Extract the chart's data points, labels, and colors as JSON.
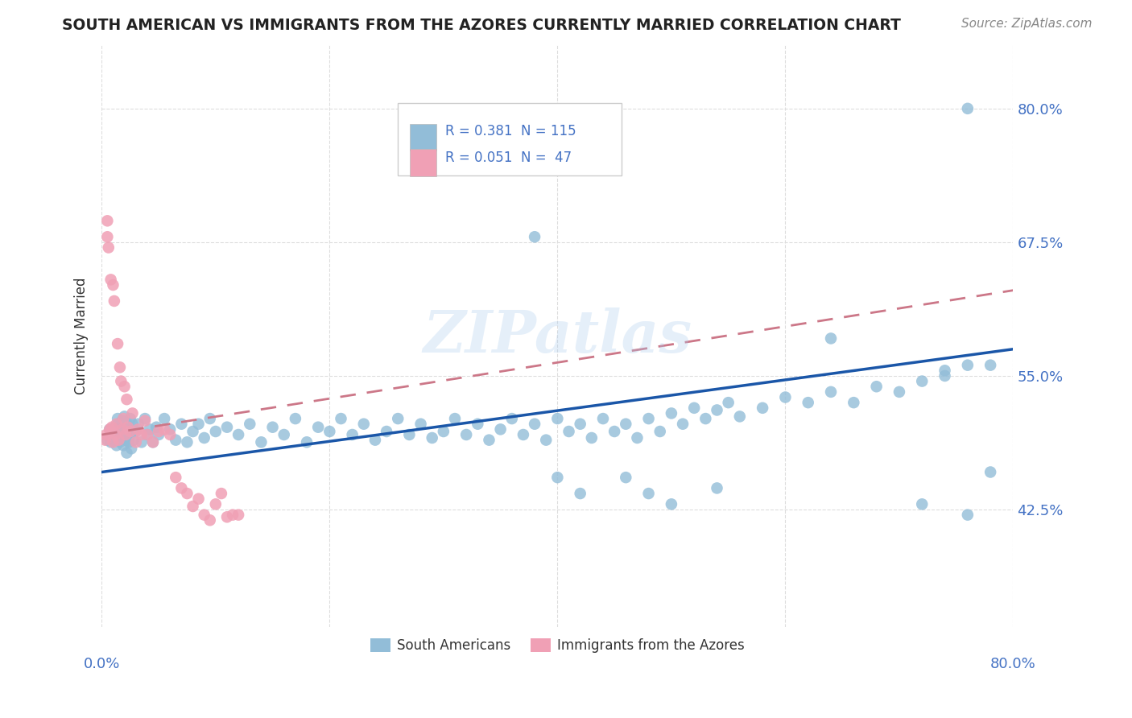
{
  "title": "SOUTH AMERICAN VS IMMIGRANTS FROM THE AZORES CURRENTLY MARRIED CORRELATION CHART",
  "source": "Source: ZipAtlas.com",
  "ylabel": "Currently Married",
  "ytick_values": [
    0.8,
    0.675,
    0.55,
    0.425
  ],
  "ytick_labels": [
    "80.0%",
    "67.5%",
    "55.0%",
    "42.5%"
  ],
  "xlim": [
    0.0,
    0.8
  ],
  "ylim": [
    0.315,
    0.86
  ],
  "legend1_r": "R = 0.381",
  "legend1_n": "N = 115",
  "legend2_r": "R = 0.051",
  "legend2_n": "N =  47",
  "blue_color": "#92BDD8",
  "pink_color": "#F0A0B5",
  "blue_line_color": "#1A56A8",
  "pink_line_color": "#CC7788",
  "watermark": "ZIPatlas",
  "axis_color": "#4472C4",
  "grid_color": "#DDDDDD",
  "title_color": "#222222",
  "source_color": "#888888",
  "blue_x": [
    0.005,
    0.007,
    0.008,
    0.01,
    0.012,
    0.013,
    0.014,
    0.015,
    0.015,
    0.016,
    0.017,
    0.018,
    0.018,
    0.019,
    0.02,
    0.02,
    0.021,
    0.022,
    0.022,
    0.023,
    0.024,
    0.025,
    0.025,
    0.026,
    0.027,
    0.028,
    0.03,
    0.032,
    0.035,
    0.038,
    0.04,
    0.042,
    0.045,
    0.048,
    0.05,
    0.055,
    0.06,
    0.065,
    0.07,
    0.075,
    0.08,
    0.085,
    0.09,
    0.095,
    0.1,
    0.11,
    0.12,
    0.13,
    0.14,
    0.15,
    0.16,
    0.17,
    0.18,
    0.19,
    0.2,
    0.21,
    0.22,
    0.23,
    0.24,
    0.25,
    0.26,
    0.27,
    0.28,
    0.29,
    0.3,
    0.31,
    0.32,
    0.33,
    0.34,
    0.35,
    0.36,
    0.37,
    0.38,
    0.39,
    0.4,
    0.41,
    0.42,
    0.43,
    0.44,
    0.45,
    0.46,
    0.47,
    0.48,
    0.49,
    0.5,
    0.51,
    0.52,
    0.53,
    0.54,
    0.55,
    0.56,
    0.58,
    0.6,
    0.62,
    0.64,
    0.66,
    0.68,
    0.7,
    0.72,
    0.74,
    0.76,
    0.38,
    0.64,
    0.72,
    0.74,
    0.76,
    0.78,
    0.76,
    0.78,
    0.4,
    0.42,
    0.46,
    0.48,
    0.5,
    0.54
  ],
  "blue_y": [
    0.49,
    0.5,
    0.488,
    0.495,
    0.502,
    0.485,
    0.51,
    0.495,
    0.505,
    0.488,
    0.5,
    0.492,
    0.508,
    0.485,
    0.498,
    0.512,
    0.49,
    0.505,
    0.478,
    0.5,
    0.488,
    0.495,
    0.51,
    0.482,
    0.505,
    0.49,
    0.498,
    0.505,
    0.488,
    0.51,
    0.495,
    0.5,
    0.488,
    0.502,
    0.495,
    0.51,
    0.5,
    0.49,
    0.505,
    0.488,
    0.498,
    0.505,
    0.492,
    0.51,
    0.498,
    0.502,
    0.495,
    0.505,
    0.488,
    0.502,
    0.495,
    0.51,
    0.488,
    0.502,
    0.498,
    0.51,
    0.495,
    0.505,
    0.49,
    0.498,
    0.51,
    0.495,
    0.505,
    0.492,
    0.498,
    0.51,
    0.495,
    0.505,
    0.49,
    0.5,
    0.51,
    0.495,
    0.505,
    0.49,
    0.51,
    0.498,
    0.505,
    0.492,
    0.51,
    0.498,
    0.505,
    0.492,
    0.51,
    0.498,
    0.515,
    0.505,
    0.52,
    0.51,
    0.518,
    0.525,
    0.512,
    0.52,
    0.53,
    0.525,
    0.535,
    0.525,
    0.54,
    0.535,
    0.545,
    0.555,
    0.56,
    0.68,
    0.585,
    0.43,
    0.55,
    0.8,
    0.56,
    0.42,
    0.46,
    0.455,
    0.44,
    0.455,
    0.44,
    0.43,
    0.445
  ],
  "pink_x": [
    0.003,
    0.004,
    0.005,
    0.005,
    0.006,
    0.007,
    0.008,
    0.008,
    0.009,
    0.01,
    0.01,
    0.011,
    0.012,
    0.013,
    0.014,
    0.015,
    0.016,
    0.017,
    0.018,
    0.019,
    0.02,
    0.021,
    0.022,
    0.023,
    0.025,
    0.027,
    0.03,
    0.032,
    0.035,
    0.038,
    0.04,
    0.045,
    0.05,
    0.055,
    0.06,
    0.065,
    0.07,
    0.075,
    0.08,
    0.085,
    0.09,
    0.095,
    0.1,
    0.105,
    0.11,
    0.115,
    0.12
  ],
  "pink_y": [
    0.49,
    0.495,
    0.68,
    0.695,
    0.67,
    0.5,
    0.64,
    0.498,
    0.502,
    0.635,
    0.488,
    0.62,
    0.495,
    0.505,
    0.58,
    0.49,
    0.558,
    0.545,
    0.5,
    0.51,
    0.54,
    0.495,
    0.528,
    0.502,
    0.498,
    0.515,
    0.488,
    0.5,
    0.495,
    0.508,
    0.495,
    0.488,
    0.498,
    0.5,
    0.495,
    0.455,
    0.445,
    0.44,
    0.428,
    0.435,
    0.42,
    0.415,
    0.43,
    0.44,
    0.418,
    0.42,
    0.42
  ]
}
